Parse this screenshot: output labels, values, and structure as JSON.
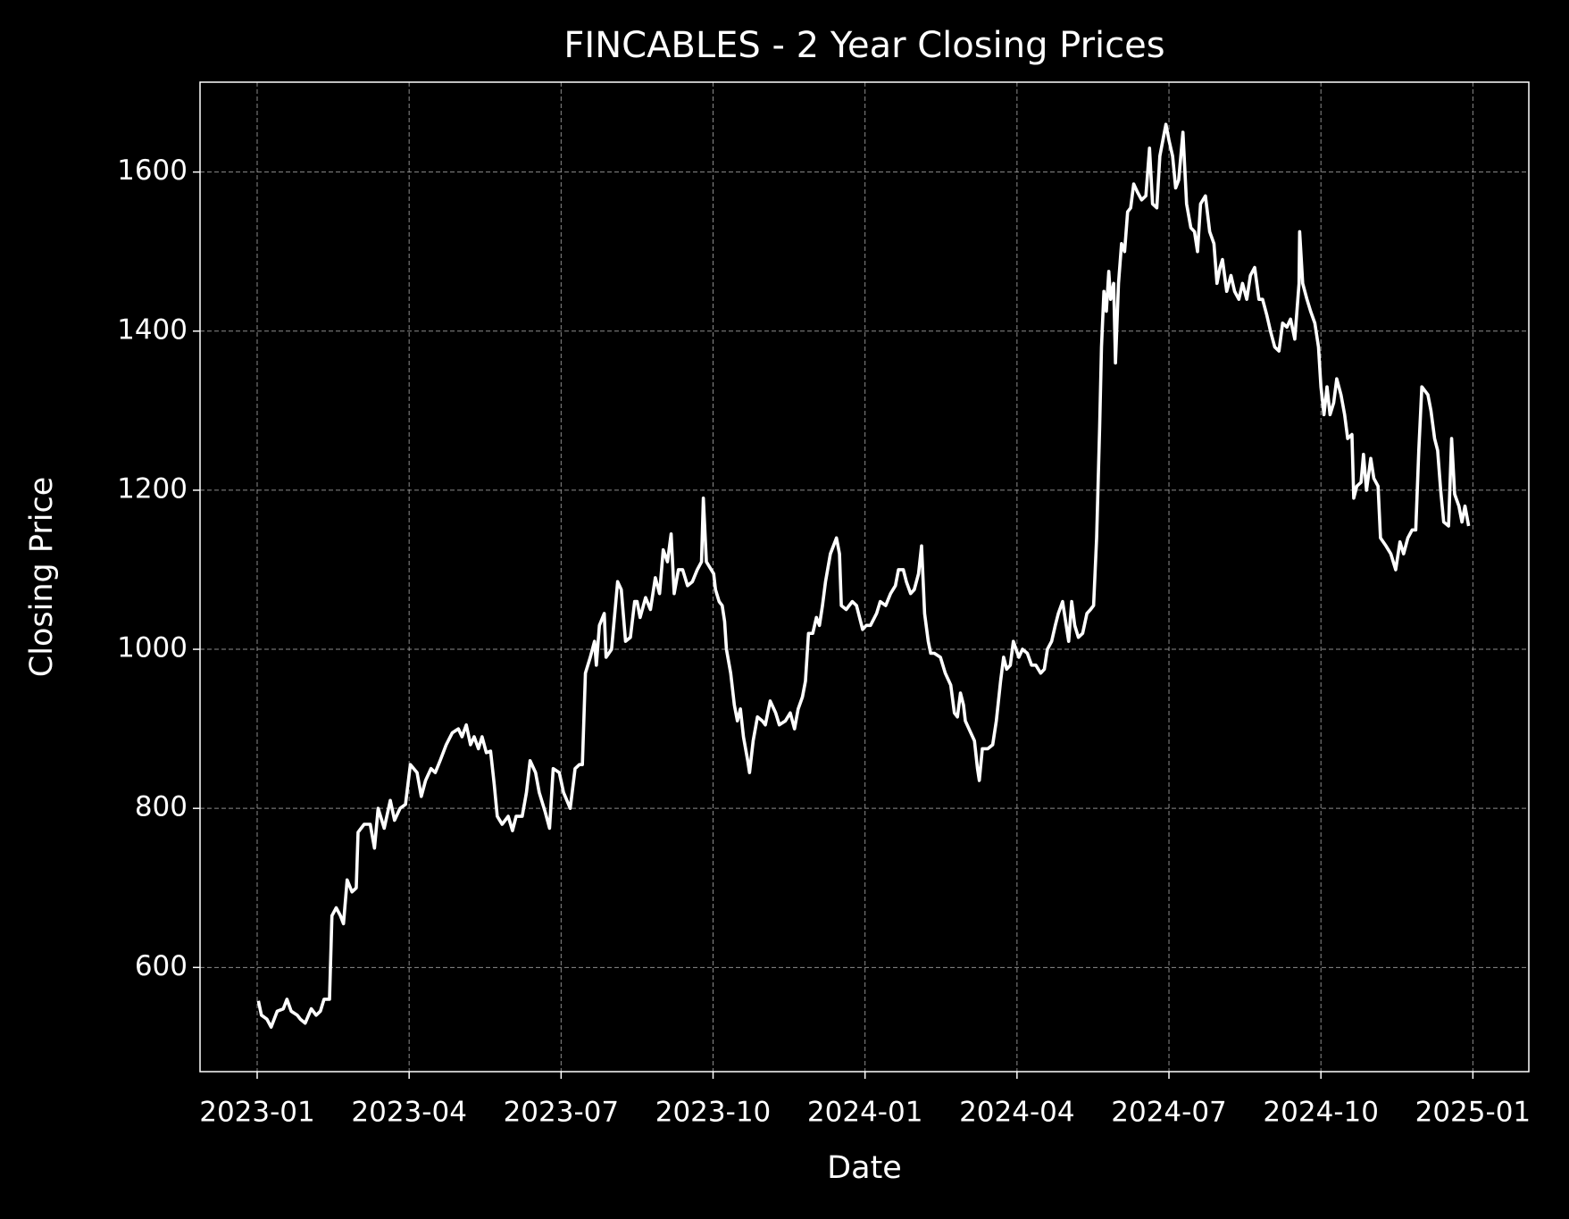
{
  "chart_data": {
    "type": "line",
    "title": "FINCABLES - 2 Year Closing Prices",
    "xlabel": "Date",
    "ylabel": "Closing Price",
    "color": "#ffffff",
    "grid": true,
    "xlim": [
      2022.906,
      2025.092
    ],
    "ylim": [
      469,
      1713
    ],
    "xticks": [
      {
        "value": 2023,
        "label": "2023-01"
      },
      {
        "value": 2023.25,
        "label": "2023-04"
      },
      {
        "value": 2023.5,
        "label": "2023-07"
      },
      {
        "value": 2023.75,
        "label": "2023-10"
      },
      {
        "value": 2024,
        "label": "2024-01"
      },
      {
        "value": 2024.25,
        "label": "2024-04"
      },
      {
        "value": 2024.5,
        "label": "2024-07"
      },
      {
        "value": 2024.75,
        "label": "2024-10"
      },
      {
        "value": 2025,
        "label": "2025-01"
      }
    ],
    "yticks": [
      600,
      800,
      1000,
      1200,
      1400,
      1600
    ],
    "x": [
      2023.002,
      2023.007,
      2023.016,
      2023.023,
      2023.033,
      2023.043,
      2023.049,
      2023.056,
      2023.066,
      2023.071,
      2023.079,
      2023.089,
      2023.097,
      2023.104,
      2023.11,
      2023.119,
      2023.123,
      2023.13,
      2023.137,
      2023.142,
      2023.148,
      2023.156,
      2023.163,
      2023.166,
      2023.176,
      2023.186,
      2023.193,
      2023.199,
      2023.209,
      2023.219,
      2023.226,
      2023.235,
      2023.244,
      2023.252,
      2023.263,
      2023.27,
      2023.277,
      2023.286,
      2023.293,
      2023.301,
      2023.311,
      2023.321,
      2023.331,
      2023.337,
      2023.344,
      2023.351,
      2023.357,
      2023.364,
      2023.37,
      2023.377,
      2023.384,
      2023.39,
      2023.395,
      2023.403,
      2023.413,
      2023.42,
      2023.426,
      2023.436,
      2023.443,
      2023.449,
      2023.458,
      2023.464,
      2023.474,
      2023.481,
      2023.487,
      2023.497,
      2023.504,
      2023.515,
      2023.523,
      2023.53,
      2023.535,
      2023.54,
      2023.548,
      2023.555,
      2023.558,
      2023.563,
      2023.571,
      2023.574,
      2023.583,
      2023.593,
      2023.599,
      2023.606,
      2023.614,
      2023.621,
      2023.625,
      2023.63,
      2023.639,
      2023.647,
      2023.655,
      2023.662,
      2023.668,
      2023.675,
      2023.681,
      2023.686,
      2023.693,
      2023.7,
      2023.708,
      2023.716,
      2023.724,
      2023.731,
      2023.734,
      2023.739,
      2023.751,
      2023.754,
      2023.76,
      2023.765,
      2023.769,
      2023.772,
      2023.779,
      2023.785,
      2023.79,
      2023.795,
      2023.8,
      2023.807,
      2023.81,
      2023.816,
      2023.823,
      2023.831,
      2023.836,
      2023.844,
      2023.853,
      2023.859,
      2023.869,
      2023.877,
      2023.884,
      2023.89,
      2023.897,
      2023.902,
      2023.907,
      2023.914,
      2023.92,
      2023.925,
      2023.93,
      2023.935,
      2023.943,
      2023.953,
      2023.958,
      2023.961,
      2023.969,
      2023.979,
      2023.986,
      2023.996,
      2024.002,
      2024.009,
      2024.019,
      2024.025,
      2024.034,
      2024.042,
      2024.05,
      2024.055,
      2024.063,
      2024.068,
      2024.075,
      2024.081,
      2024.088,
      2024.093,
      2024.098,
      2024.104,
      2024.108,
      2024.114,
      2024.124,
      2024.132,
      2024.141,
      2024.147,
      2024.152,
      2024.157,
      2024.162,
      2024.165,
      2024.174,
      2024.18,
      2024.185,
      2024.188,
      2024.193,
      2024.202,
      2024.21,
      2024.216,
      2024.223,
      2024.228,
      2024.233,
      2024.239,
      2024.244,
      2024.253,
      2024.259,
      2024.267,
      2024.274,
      2024.281,
      2024.289,
      2024.295,
      2024.3,
      2024.307,
      2024.313,
      2024.318,
      2024.325,
      2024.33,
      2024.335,
      2024.34,
      2024.345,
      2024.351,
      2024.358,
      2024.365,
      2024.371,
      2024.376,
      2024.381,
      2024.386,
      2024.389,
      2024.393,
      2024.397,
      2024.401,
      2024.404,
      2024.409,
      2024.412,
      2024.417,
      2024.422,
      2024.427,
      2024.432,
      2024.437,
      2024.442,
      2024.448,
      2024.455,
      2024.462,
      2024.468,
      2024.473,
      2024.48,
      2024.485,
      2024.49,
      2024.495,
      2024.5,
      2024.506,
      2024.511,
      2024.516,
      2024.523,
      2024.529,
      2024.536,
      2024.542,
      2024.547,
      2024.552,
      2024.56,
      2024.567,
      2024.574,
      2024.579,
      2024.584,
      2024.588,
      2024.595,
      2024.602,
      2024.608,
      2024.615,
      2024.621,
      2024.628,
      2024.634,
      2024.641,
      2024.648,
      2024.654,
      2024.661,
      2024.667,
      2024.674,
      2024.681,
      2024.687,
      2024.694,
      2024.7,
      2024.707,
      2024.714,
      2024.715,
      2024.72,
      2024.727,
      2024.733,
      2024.74,
      2024.746,
      2024.75,
      2024.755,
      2024.76,
      2024.765,
      2024.771,
      2024.776,
      2024.783,
      2024.789,
      2024.794,
      2024.801,
      2024.804,
      2024.809,
      2024.816,
      2024.82,
      2024.825,
      2024.832,
      2024.837,
      2024.844,
      2024.848,
      2024.857,
      2024.865,
      2024.873,
      2024.88,
      2024.886,
      2024.893,
      2024.9,
      2024.906,
      2024.911,
      2024.916,
      2024.926,
      2024.931,
      2024.937,
      2024.942,
      2024.947,
      2024.952,
      2024.96,
      2024.965,
      2024.97,
      2024.977,
      2024.982,
      2024.987,
      2024.993
    ],
    "values": [
      558,
      540,
      535,
      525,
      545,
      548,
      560,
      545,
      540,
      535,
      530,
      548,
      540,
      545,
      560,
      560,
      665,
      675,
      665,
      655,
      710,
      695,
      700,
      770,
      780,
      780,
      750,
      800,
      775,
      810,
      785,
      800,
      805,
      855,
      845,
      815,
      835,
      850,
      845,
      860,
      880,
      895,
      900,
      890,
      905,
      880,
      890,
      875,
      890,
      870,
      872,
      830,
      790,
      780,
      790,
      772,
      790,
      790,
      820,
      860,
      845,
      820,
      795,
      775,
      850,
      845,
      820,
      800,
      850,
      855,
      855,
      970,
      990,
      1010,
      980,
      1030,
      1045,
      990,
      1000,
      1085,
      1075,
      1010,
      1015,
      1060,
      1060,
      1040,
      1065,
      1050,
      1090,
      1070,
      1125,
      1110,
      1145,
      1070,
      1100,
      1100,
      1080,
      1085,
      1100,
      1110,
      1190,
      1110,
      1095,
      1075,
      1060,
      1055,
      1035,
      1000,
      970,
      930,
      910,
      925,
      890,
      860,
      845,
      885,
      915,
      910,
      905,
      935,
      920,
      905,
      910,
      920,
      900,
      925,
      940,
      960,
      1020,
      1020,
      1040,
      1030,
      1055,
      1085,
      1120,
      1140,
      1120,
      1055,
      1050,
      1060,
      1055,
      1025,
      1030,
      1030,
      1045,
      1060,
      1055,
      1070,
      1080,
      1100,
      1100,
      1085,
      1070,
      1075,
      1095,
      1130,
      1045,
      1010,
      995,
      995,
      990,
      970,
      955,
      920,
      915,
      945,
      930,
      910,
      895,
      885,
      850,
      835,
      875,
      875,
      880,
      910,
      960,
      990,
      975,
      980,
      1010,
      990,
      1000,
      995,
      980,
      980,
      970,
      975,
      1000,
      1010,
      1030,
      1045,
      1060,
      1035,
      1010,
      1060,
      1030,
      1015,
      1020,
      1045,
      1050,
      1055,
      1140,
      1280,
      1380,
      1450,
      1425,
      1475,
      1440,
      1460,
      1360,
      1460,
      1510,
      1500,
      1550,
      1555,
      1585,
      1575,
      1565,
      1570,
      1630,
      1560,
      1555,
      1620,
      1640,
      1660,
      1640,
      1620,
      1580,
      1590,
      1650,
      1560,
      1530,
      1525,
      1500,
      1560,
      1570,
      1525,
      1510,
      1460,
      1480,
      1490,
      1450,
      1470,
      1450,
      1440,
      1460,
      1440,
      1470,
      1480,
      1440,
      1440,
      1420,
      1400,
      1380,
      1375,
      1410,
      1405,
      1415,
      1390,
      1460,
      1525,
      1460,
      1440,
      1425,
      1410,
      1380,
      1330,
      1295,
      1330,
      1295,
      1310,
      1340,
      1320,
      1295,
      1265,
      1270,
      1190,
      1205,
      1210,
      1245,
      1200,
      1240,
      1215,
      1205,
      1140,
      1130,
      1120,
      1100,
      1135,
      1120,
      1140,
      1150,
      1150,
      1250,
      1330,
      1320,
      1300,
      1265,
      1250,
      1200,
      1160,
      1155,
      1265,
      1195,
      1180,
      1160,
      1180,
      1155
    ]
  }
}
